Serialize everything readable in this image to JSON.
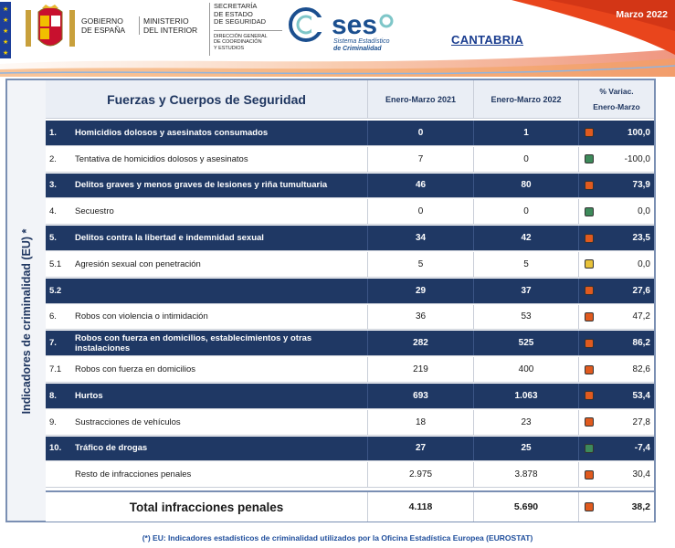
{
  "header": {
    "gov_line1": "GOBIERNO",
    "gov_line2": "DE ESPAÑA",
    "min_line1": "MINISTERIO",
    "min_line2": "DEL INTERIOR",
    "sec_line1": "SECRETARÍA",
    "sec_line2": "DE ESTADO",
    "sec_line3": "DE SEGURIDAD",
    "dir_line1": "DIRECCIÓN GENERAL",
    "dir_line2": "DE COORDINACIÓN",
    "dir_line3": "Y ESTUDIOS",
    "ses_logo_text": "ses",
    "ses_sub1": "Sistema Estadístico",
    "ses_sub2": "de Criminalidad",
    "region": "CANTABRIA",
    "period": "Marzo 2022"
  },
  "side_label": "Indicadores de criminalidad (EU) *",
  "table": {
    "title": "Fuerzas y Cuerpos de Seguridad",
    "col1": "Enero-Marzo 2021",
    "col2": "Enero-Marzo 2022",
    "col3_line1": "% Variac.",
    "col3_line2": "Enero-Marzo",
    "rows": [
      {
        "num": "1.",
        "label": "Homicidios dolosos y asesinatos consumados",
        "v1": "0",
        "v2": "1",
        "pct": "100,0",
        "lamp": "#e05a1e",
        "style": "dark"
      },
      {
        "num": "2.",
        "label": "Tentativa de homicidios dolosos y asesinatos",
        "v1": "7",
        "v2": "0",
        "pct": "-100,0",
        "lamp": "#3d8a5a",
        "style": "light"
      },
      {
        "num": "3.",
        "label": "Delitos graves y menos graves de lesiones y riña tumultuaria",
        "v1": "46",
        "v2": "80",
        "pct": "73,9",
        "lamp": "#e05a1e",
        "style": "dark"
      },
      {
        "num": "4.",
        "label": "Secuestro",
        "v1": "0",
        "v2": "0",
        "pct": "0,0",
        "lamp": "#3d8a5a",
        "style": "light"
      },
      {
        "num": "5.",
        "label": "Delitos contra la libertad e indemnidad sexual",
        "v1": "34",
        "v2": "42",
        "pct": "23,5",
        "lamp": "#e05a1e",
        "style": "dark"
      },
      {
        "num": "5.1",
        "label": "Agresión sexual con penetración",
        "v1": "5",
        "v2": "5",
        "pct": "0,0",
        "lamp": "#e8c23a",
        "style": "light"
      },
      {
        "num": "5.2",
        "label": "",
        "v1": "29",
        "v2": "37",
        "pct": "27,6",
        "lamp": "#e05a1e",
        "style": "dark"
      },
      {
        "num": "6.",
        "label": "Robos con violencia o intimidación",
        "v1": "36",
        "v2": "53",
        "pct": "47,2",
        "lamp": "#e05a1e",
        "style": "light"
      },
      {
        "num": "7.",
        "label": "Robos con fuerza en domicilios, establecimientos y otras instalaciones",
        "v1": "282",
        "v2": "525",
        "pct": "86,2",
        "lamp": "#e05a1e",
        "style": "dark"
      },
      {
        "num": "7.1",
        "label": "Robos con fuerza en domicilios",
        "v1": "219",
        "v2": "400",
        "pct": "82,6",
        "lamp": "#e05a1e",
        "style": "light"
      },
      {
        "num": "8.",
        "label": "Hurtos",
        "v1": "693",
        "v2": "1.063",
        "pct": "53,4",
        "lamp": "#e05a1e",
        "style": "dark"
      },
      {
        "num": "9.",
        "label": "Sustracciones de vehículos",
        "v1": "18",
        "v2": "23",
        "pct": "27,8",
        "lamp": "#e05a1e",
        "style": "light"
      },
      {
        "num": "10.",
        "label": "Tráfico de drogas",
        "v1": "27",
        "v2": "25",
        "pct": "-7,4",
        "lamp": "#3d8a5a",
        "style": "dark"
      },
      {
        "num": "",
        "label": "Resto de infracciones penales",
        "v1": "2.975",
        "v2": "3.878",
        "pct": "30,4",
        "lamp": "#e05a1e",
        "style": "light"
      }
    ],
    "total": {
      "label": "Total infracciones penales",
      "v1": "4.118",
      "v2": "5.690",
      "pct": "38,2",
      "lamp": "#e05a1e"
    }
  },
  "footnote": "(*) EU: Indicadores estadísticos de criminalidad utilizados por la Oficina Estadística Europea (EUROSTAT)"
}
